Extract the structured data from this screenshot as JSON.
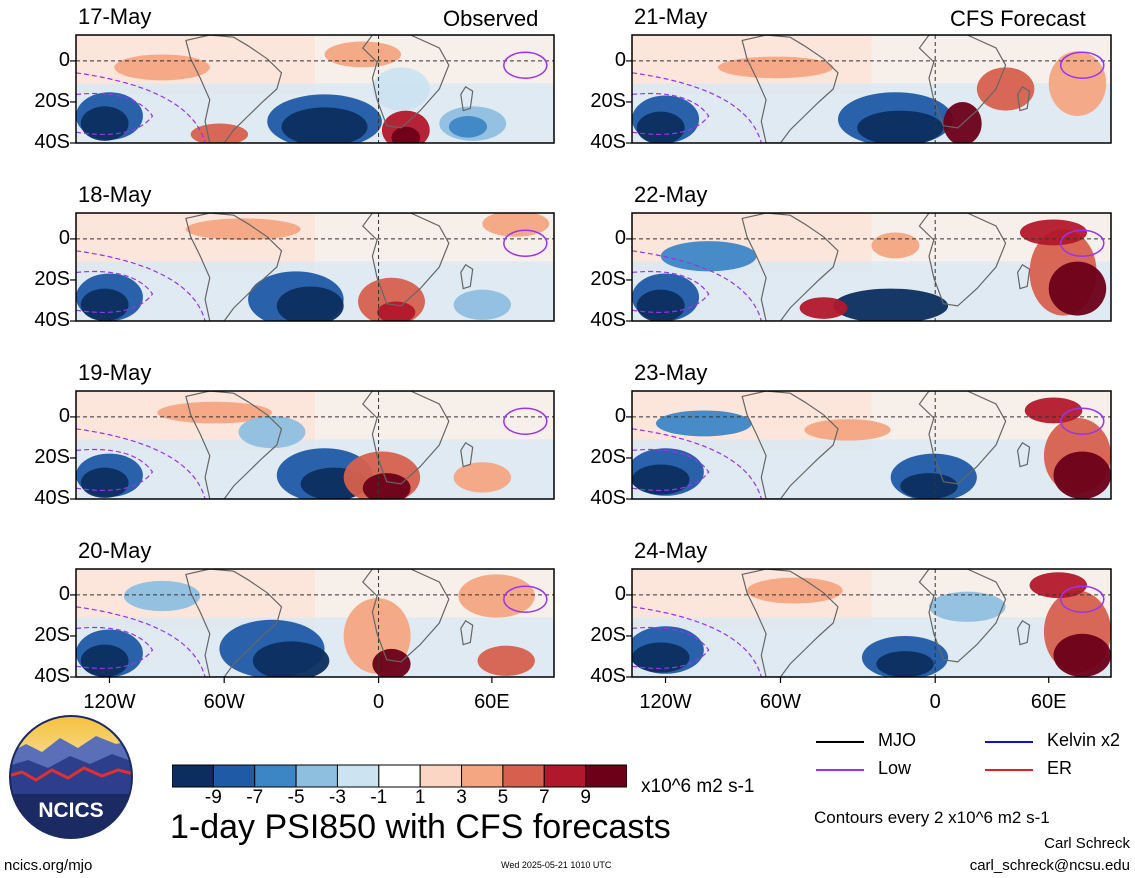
{
  "header": {
    "left_title": "Observed",
    "right_title": "CFS Forecast"
  },
  "panels_left": [
    "17-May",
    "18-May",
    "19-May",
    "20-May"
  ],
  "panels_right": [
    "21-May",
    "22-May",
    "23-May",
    "24-May"
  ],
  "y_ticks": [
    "0",
    "20S",
    "40S"
  ],
  "x_ticks": [
    "120W",
    "60W",
    "0",
    "60E"
  ],
  "legend": {
    "items": [
      {
        "label": "MJO",
        "color": "#000000"
      },
      {
        "label": "Kelvin x2",
        "color": "#1010d0"
      },
      {
        "label": "Low",
        "color": "#9933ee"
      },
      {
        "label": "ER",
        "color": "#dd2222"
      }
    ],
    "contours_note": "Contours every 2 x10^6 m2 s-1"
  },
  "colorbar": {
    "colors": [
      "#0b2e5e",
      "#1f5aa6",
      "#3d86c6",
      "#8fbfdf",
      "#cce3f1",
      "#ffffff",
      "#fcd6c4",
      "#f4a582",
      "#d6604d",
      "#b2182b",
      "#6b0018"
    ],
    "ticks": [
      "-9",
      "-7",
      "-5",
      "-3",
      "-1",
      "1",
      "3",
      "5",
      "7",
      "9"
    ],
    "units": "x10^6 m2 s-1"
  },
  "title": "1-day PSI850 with CFS forecasts",
  "logo_text": "NCICS",
  "footer": {
    "url": "ncics.org/mjo",
    "timestamp": "Wed 2025-05-21 1010 UTC",
    "author": "Carl Schreck",
    "email": "carl_schreck@ncsu.edu"
  }
}
